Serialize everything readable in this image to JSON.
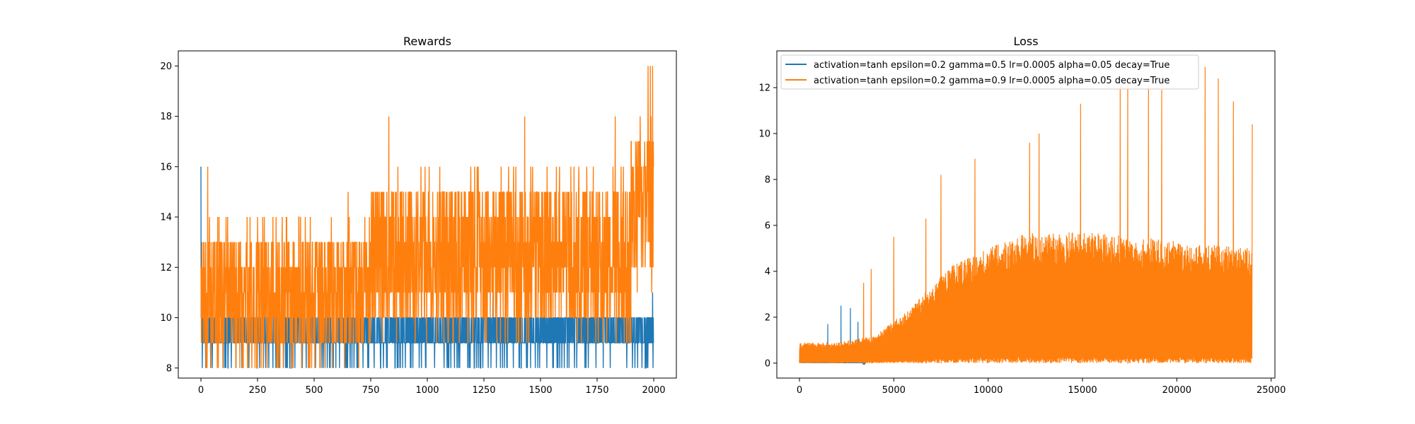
{
  "chart_data": [
    {
      "type": "line",
      "title": "Rewards",
      "xlabel": "",
      "ylabel": "",
      "xlim": [
        -100,
        2100
      ],
      "ylim": [
        7.6,
        20.6
      ],
      "xticks": [
        0,
        250,
        500,
        750,
        1000,
        1250,
        1500,
        1750,
        2000
      ],
      "yticks": [
        8,
        10,
        12,
        14,
        16,
        18,
        20
      ],
      "grid": false,
      "legend": null,
      "series": [
        {
          "color": "#1f77b4",
          "n_points": 2000,
          "typical_range": [
            9,
            10
          ],
          "min": 8,
          "max": 16,
          "peaks": [
            [
              0,
              16
            ],
            [
              2,
              13
            ],
            [
              320,
              11
            ],
            [
              1290,
              11
            ],
            [
              1400,
              11
            ],
            [
              1995,
              11
            ]
          ]
        },
        {
          "color": "#ff7f0e",
          "n_points": 2000,
          "segments": [
            {
              "x": [
                0,
                750
              ],
              "typical_range": [
                9,
                13
              ],
              "min": 8,
              "max": 14
            },
            {
              "x": [
                750,
                1900
              ],
              "typical_range": [
                10,
                15
              ],
              "min": 9,
              "max": 16
            },
            {
              "x": [
                1900,
                2000
              ],
              "typical_range": [
                12,
                17
              ],
              "min": 11,
              "max": 20
            }
          ],
          "peaks": [
            [
              30,
              16
            ],
            [
              250,
              14
            ],
            [
              440,
              14
            ],
            [
              650,
              15
            ],
            [
              830,
              18
            ],
            [
              1430,
              18
            ],
            [
              1830,
              18
            ],
            [
              1940,
              18
            ],
            [
              1975,
              20
            ],
            [
              1985,
              20
            ],
            [
              1995,
              20
            ]
          ]
        }
      ]
    },
    {
      "type": "line",
      "title": "Loss",
      "xlabel": "",
      "ylabel": "",
      "xlim": [
        -1200,
        25200
      ],
      "ylim": [
        -0.65,
        13.6
      ],
      "xticks": [
        0,
        5000,
        10000,
        15000,
        20000,
        25000
      ],
      "yticks": [
        0,
        2,
        4,
        6,
        8,
        10,
        12
      ],
      "grid": false,
      "legend": {
        "position": "upper-left",
        "entries": [
          {
            "label": "activation=tanh epsilon=0.2 gamma=0.5 lr=0.0005 alpha=0.05 decay=True",
            "color": "#1f77b4"
          },
          {
            "label": "activation=tanh epsilon=0.2 gamma=0.9 lr=0.0005 alpha=0.05 decay=True",
            "color": "#ff7f0e"
          }
        ]
      },
      "series": [
        {
          "name": "activation=tanh epsilon=0.2 gamma=0.5 lr=0.0005 alpha=0.05 decay=True",
          "color": "#1f77b4",
          "x_end": 3500,
          "envelope": [
            [
              0,
              0.6
            ],
            [
              500,
              0.3
            ],
            [
              1000,
              0.12
            ],
            [
              2000,
              0.05
            ],
            [
              3500,
              0.02
            ]
          ],
          "peaks": [
            [
              1500,
              1.7
            ],
            [
              2200,
              2.5
            ],
            [
              2700,
              2.4
            ],
            [
              3100,
              1.8
            ]
          ]
        },
        {
          "name": "activation=tanh epsilon=0.2 gamma=0.9 lr=0.0005 alpha=0.05 decay=True",
          "color": "#ff7f0e",
          "x_end": 24000,
          "envelope": [
            [
              0,
              0.9
            ],
            [
              2000,
              0.9
            ],
            [
              4000,
              1.2
            ],
            [
              6000,
              2.5
            ],
            [
              8000,
              4.2
            ],
            [
              10000,
              5.0
            ],
            [
              12000,
              5.7
            ],
            [
              15000,
              5.7
            ],
            [
              18000,
              5.5
            ],
            [
              21000,
              5.2
            ],
            [
              24000,
              5.0
            ]
          ],
          "peaks": [
            [
              3400,
              3.5
            ],
            [
              3800,
              4.1
            ],
            [
              5000,
              5.5
            ],
            [
              6700,
              6.3
            ],
            [
              7500,
              8.2
            ],
            [
              9300,
              8.9
            ],
            [
              12200,
              9.6
            ],
            [
              12700,
              10.0
            ],
            [
              14900,
              11.3
            ],
            [
              17000,
              12.1
            ],
            [
              17400,
              12.3
            ],
            [
              18500,
              12.1
            ],
            [
              19200,
              11.9
            ],
            [
              21500,
              12.9
            ],
            [
              22200,
              12.4
            ],
            [
              23000,
              11.4
            ],
            [
              24000,
              10.4
            ]
          ]
        }
      ]
    }
  ]
}
